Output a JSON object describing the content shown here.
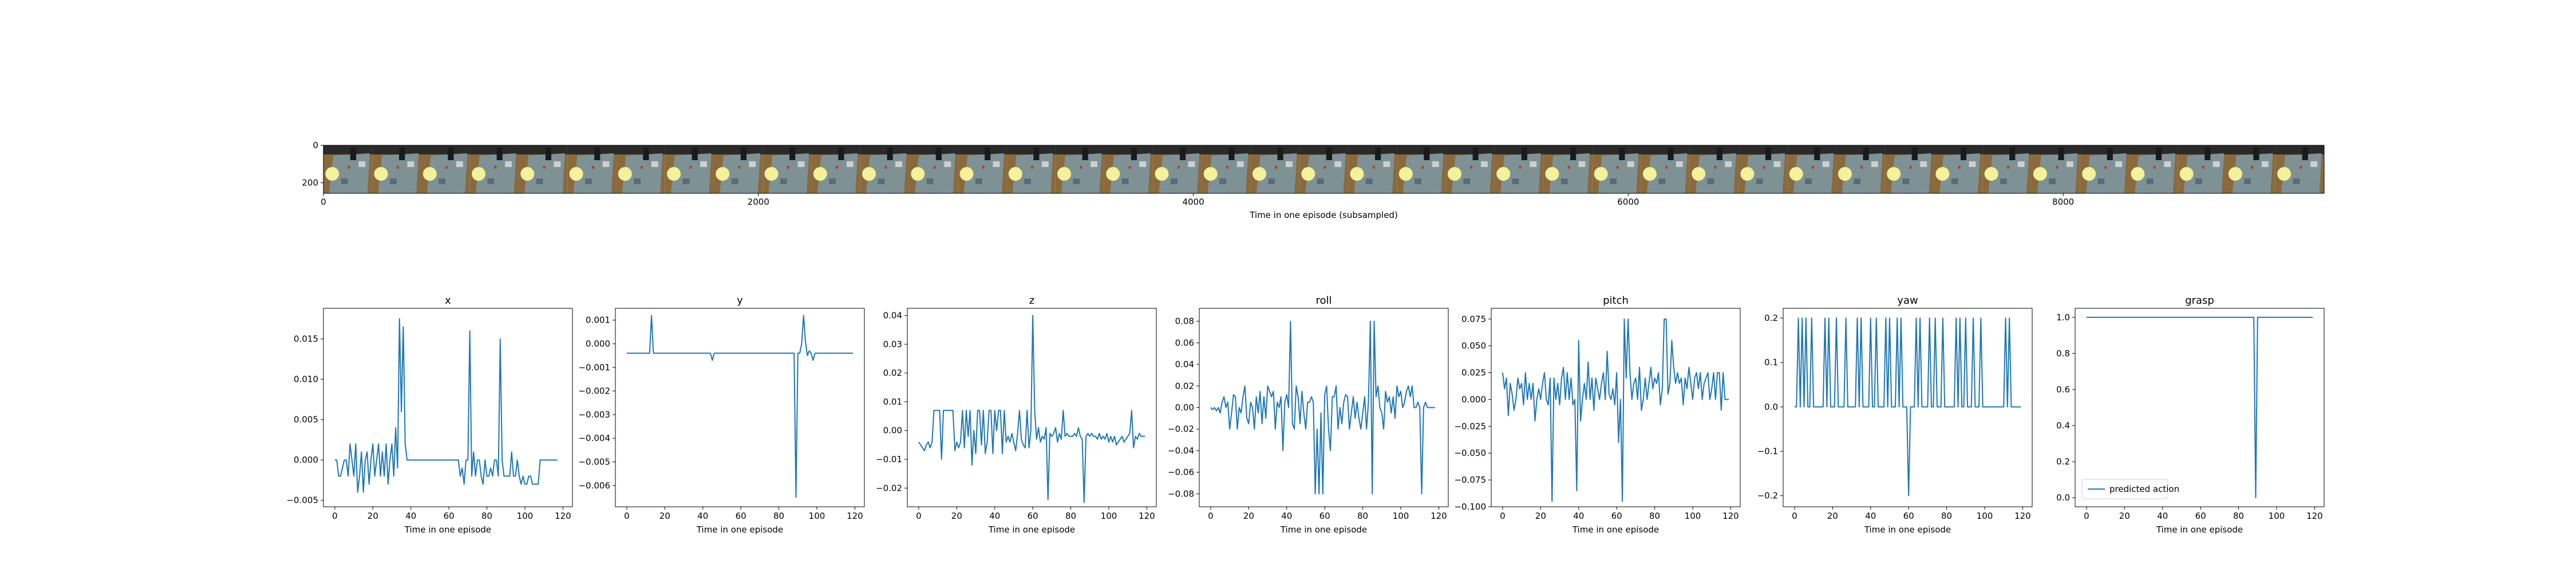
{
  "image_strip": {
    "xlabel": "Time in one episode (subsampled)",
    "x_ticks": [
      0,
      2000,
      4000,
      6000,
      8000
    ],
    "y_ticks": [
      0,
      200
    ],
    "xlim": [
      0,
      9200
    ],
    "ylim": [
      256,
      0
    ],
    "frame_count": 41
  },
  "chart_data": [
    {
      "type": "line",
      "title": "x",
      "xlabel": "Time in one episode",
      "xlim": [
        -6,
        125
      ],
      "ylim": [
        -0.0058,
        0.0188
      ],
      "x_ticks": [
        0,
        20,
        40,
        60,
        80,
        100,
        120
      ],
      "y_ticks": [
        -0.005,
        0.0,
        0.005,
        0.01,
        0.015
      ],
      "y_tick_labels": [
        "−0.005",
        "0.000",
        "0.005",
        "0.010",
        "0.015"
      ],
      "color": "#1f77b4",
      "y": [
        0.0,
        0.0,
        -0.002,
        -0.002,
        -0.001,
        0.0,
        0.0,
        -0.002,
        0.002,
        0.0,
        -0.002,
        0.002,
        -0.004,
        -0.002,
        0.001,
        -0.004,
        0.0,
        0.001,
        -0.003,
        0.0,
        0.002,
        -0.002,
        0.0,
        0.002,
        -0.002,
        0.001,
        -0.002,
        0.002,
        -0.003,
        0.0,
        0.002,
        -0.002,
        0.004,
        -0.001,
        0.0175,
        0.006,
        0.0165,
        0.002,
        0.0,
        0.0,
        0.0,
        0.0,
        0.0,
        0.0,
        0.0,
        0.0,
        0.0,
        0.0,
        0.0,
        0.0,
        0.0,
        0.0,
        0.0,
        0.0,
        0.0,
        0.0,
        0.0,
        0.0,
        0.0,
        0.0,
        0.0,
        0.0,
        0.0,
        0.0,
        0.0,
        0.0,
        -0.002,
        -0.001,
        -0.003,
        0.0,
        0.0,
        0.016,
        -0.002,
        0.001,
        -0.002,
        0.0,
        0.0,
        -0.002,
        -0.003,
        0.0,
        -0.002,
        -0.002,
        -0.001,
        -0.002,
        0.0,
        0.0,
        -0.002,
        0.015,
        0.0,
        -0.002,
        -0.002,
        -0.002,
        -0.002,
        0.001,
        -0.002,
        -0.002,
        0.0,
        -0.002,
        -0.003,
        -0.002,
        -0.003,
        -0.003,
        -0.002,
        -0.002,
        -0.003,
        -0.003,
        -0.003,
        -0.003,
        0.0,
        0.0,
        0.0,
        0.0,
        0.0,
        0.0,
        0.0,
        0.0,
        0.0,
        0.0
      ]
    },
    {
      "type": "line",
      "title": "y",
      "xlabel": "Time in one episode",
      "xlim": [
        -6,
        125
      ],
      "ylim": [
        -0.0069,
        0.0015
      ],
      "x_ticks": [
        0,
        20,
        40,
        60,
        80,
        100,
        120
      ],
      "y_ticks": [
        -0.006,
        -0.005,
        -0.004,
        -0.003,
        -0.002,
        -0.001,
        0.0,
        0.001
      ],
      "y_tick_labels": [
        "−0.006",
        "−0.005",
        "−0.004",
        "−0.003",
        "−0.002",
        "−0.001",
        "0.000",
        "0.001"
      ],
      "color": "#1f77b4",
      "y": [
        -0.0004,
        -0.0004,
        -0.0004,
        -0.0004,
        -0.0004,
        -0.0004,
        -0.0004,
        -0.0004,
        -0.0004,
        -0.0004,
        -0.0004,
        -0.0004,
        -0.0004,
        0.0012,
        -0.0004,
        -0.0004,
        -0.0004,
        -0.0004,
        -0.0004,
        -0.0004,
        -0.0004,
        -0.0004,
        -0.0004,
        -0.0004,
        -0.0004,
        -0.0004,
        -0.0004,
        -0.0004,
        -0.0004,
        -0.0004,
        -0.0004,
        -0.0004,
        -0.0004,
        -0.0004,
        -0.0004,
        -0.0004,
        -0.0004,
        -0.0004,
        -0.0004,
        -0.0004,
        -0.0004,
        -0.0004,
        -0.0004,
        -0.0004,
        -0.0004,
        -0.0007,
        -0.0004,
        -0.0004,
        -0.0004,
        -0.0004,
        -0.0004,
        -0.0004,
        -0.0004,
        -0.0004,
        -0.0004,
        -0.0004,
        -0.0004,
        -0.0004,
        -0.0004,
        -0.0004,
        -0.0004,
        -0.0004,
        -0.0004,
        -0.0004,
        -0.0004,
        -0.0004,
        -0.0004,
        -0.0004,
        -0.0004,
        -0.0004,
        -0.0004,
        -0.0004,
        -0.0004,
        -0.0004,
        -0.0004,
        -0.0004,
        -0.0004,
        -0.0004,
        -0.0004,
        -0.0004,
        -0.0004,
        -0.0004,
        -0.0004,
        -0.0004,
        -0.0004,
        -0.0004,
        -0.0004,
        -0.0004,
        -0.0004,
        -0.0065,
        -0.0004,
        -0.0004,
        0.0,
        0.0012,
        0.0001,
        -0.0005,
        -0.0003,
        -0.0004,
        -0.0007,
        -0.0004,
        -0.0004,
        -0.0004,
        -0.0004,
        -0.0004,
        -0.0004,
        -0.0004,
        -0.0004,
        -0.0004,
        -0.0004,
        -0.0004,
        -0.0004,
        -0.0004,
        -0.0004,
        -0.0004,
        -0.0004,
        -0.0004,
        -0.0004,
        -0.0004,
        -0.0004,
        -0.0004
      ]
    },
    {
      "type": "line",
      "title": "z",
      "xlabel": "Time in one episode",
      "xlim": [
        -6,
        125
      ],
      "ylim": [
        -0.0265,
        0.0425
      ],
      "x_ticks": [
        0,
        20,
        40,
        60,
        80,
        100,
        120
      ],
      "y_ticks": [
        -0.02,
        -0.01,
        0.0,
        0.01,
        0.02,
        0.03,
        0.04
      ],
      "y_tick_labels": [
        "−0.02",
        "−0.01",
        "0.00",
        "0.01",
        "0.02",
        "0.03",
        "0.04"
      ],
      "color": "#1f77b4",
      "y": [
        -0.004,
        -0.005,
        -0.006,
        -0.007,
        -0.005,
        -0.004,
        -0.006,
        -0.004,
        0.007,
        0.007,
        0.007,
        0.007,
        -0.01,
        0.007,
        0.007,
        0.007,
        0.007,
        0.007,
        0.007,
        -0.007,
        -0.004,
        -0.006,
        -0.004,
        0.007,
        -0.006,
        0.007,
        -0.002,
        0.007,
        -0.012,
        0.0,
        -0.008,
        0.007,
        0.007,
        -0.005,
        0.007,
        -0.008,
        -0.004,
        0.007,
        0.007,
        -0.008,
        0.007,
        0.0,
        0.007,
        0.007,
        -0.008,
        0.007,
        -0.004,
        -0.002,
        -0.004,
        -0.001,
        -0.004,
        -0.007,
        -0.001,
        0.007,
        -0.003,
        -0.005,
        -0.006,
        0.007,
        -0.006,
        0.0,
        0.04,
        0.007,
        -0.003,
        0.001,
        -0.004,
        -0.002,
        -0.003,
        0.001,
        -0.024,
        -0.001,
        -0.002,
        -0.001,
        0.001,
        -0.004,
        -0.001,
        -0.003,
        0.007,
        -0.002,
        -0.001,
        -0.002,
        -0.002,
        -0.002,
        -0.001,
        -0.002,
        0.001,
        -0.002,
        -0.003,
        -0.025,
        -0.002,
        -0.001,
        -0.002,
        -0.001,
        -0.002,
        -0.002,
        -0.003,
        -0.001,
        -0.003,
        -0.002,
        -0.003,
        -0.001,
        -0.004,
        -0.002,
        -0.004,
        -0.002,
        -0.005,
        -0.004,
        -0.003,
        -0.002,
        -0.004,
        -0.003,
        -0.002,
        -0.001,
        0.007,
        -0.006,
        -0.002,
        -0.003,
        -0.001,
        -0.002,
        -0.002,
        -0.002
      ]
    },
    {
      "type": "line",
      "title": "roll",
      "xlabel": "Time in one episode",
      "xlim": [
        -6,
        125
      ],
      "ylim": [
        -0.092,
        0.092
      ],
      "x_ticks": [
        0,
        20,
        40,
        60,
        80,
        100,
        120
      ],
      "y_ticks": [
        -0.08,
        -0.06,
        -0.04,
        -0.02,
        0.0,
        0.02,
        0.04,
        0.06,
        0.08
      ],
      "y_tick_labels": [
        "−0.08",
        "−0.06",
        "−0.04",
        "−0.02",
        "0.00",
        "0.02",
        "0.04",
        "0.06",
        "0.08"
      ],
      "color": "#1f77b4",
      "y": [
        0.0,
        -0.002,
        0.0,
        -0.003,
        0.0,
        -0.005,
        0.005,
        0.01,
        0.0,
        0.005,
        -0.02,
        -0.005,
        0.012,
        0.01,
        -0.02,
        0.0,
        -0.005,
        0.01,
        0.02,
        -0.01,
        -0.015,
        0.005,
        0.0,
        -0.02,
        0.01,
        -0.005,
        0.015,
        -0.015,
        0.01,
        -0.01,
        0.02,
        0.015,
        0.01,
        0.015,
        -0.02,
        0.005,
        0.0,
        0.01,
        -0.04,
        0.005,
        0.012,
        0.0,
        0.08,
        -0.015,
        -0.02,
        0.02,
        0.01,
        -0.015,
        0.015,
        -0.005,
        -0.02,
        0.005,
        0.005,
        0.01,
        0.005,
        -0.08,
        -0.02,
        -0.08,
        -0.005,
        -0.08,
        0.012,
        0.02,
        -0.02,
        -0.04,
        0.01,
        0.01,
        0.02,
        -0.02,
        0.0,
        -0.015,
        0.005,
        0.012,
        0.01,
        -0.02,
        -0.005,
        0.01,
        -0.01,
        0.005,
        -0.01,
        -0.02,
        -0.005,
        0.01,
        -0.02,
        0.005,
        0.08,
        -0.08,
        0.08,
        0.01,
        0.02,
        0.0,
        -0.005,
        -0.02,
        0.015,
        0.005,
        0.01,
        -0.005,
        0.01,
        -0.01,
        0.02,
        0.01,
        0.015,
        0.0,
        0.005,
        0.015,
        0.02,
        0.01,
        0.02,
        0.0,
        0.0,
        0.005,
        0.0,
        -0.08,
        0.0,
        0.005,
        0.0,
        0.0,
        0.0,
        0.0,
        0.0
      ]
    },
    {
      "type": "line",
      "title": "pitch",
      "xlabel": "Time in one episode",
      "xlim": [
        -6,
        125
      ],
      "ylim": [
        -0.1,
        0.085
      ],
      "x_ticks": [
        0,
        20,
        40,
        60,
        80,
        100,
        120
      ],
      "y_ticks": [
        -0.1,
        -0.075,
        -0.05,
        -0.025,
        0.0,
        0.025,
        0.05,
        0.075
      ],
      "y_tick_labels": [
        "−0.100",
        "−0.075",
        "−0.050",
        "−0.025",
        "0.000",
        "0.025",
        "0.050",
        "0.075"
      ],
      "color": "#1f77b4",
      "y": [
        0.025,
        0.01,
        0.02,
        -0.015,
        0.015,
        0.005,
        -0.01,
        0.0,
        0.02,
        0.01,
        0.015,
        -0.005,
        0.025,
        0.0,
        0.015,
        0.0,
        0.015,
        -0.02,
        0.0,
        0.01,
        0.0,
        0.015,
        0.025,
        0.0,
        -0.005,
        0.02,
        -0.095,
        0.02,
        0.0,
        0.015,
        -0.005,
        0.02,
        0.03,
        0.0,
        0.025,
        0.0,
        0.02,
        -0.005,
        0.0,
        -0.085,
        0.055,
        -0.02,
        0.0,
        0.015,
        0.0,
        0.035,
        0.0,
        0.02,
        -0.01,
        0.02,
        0.01,
        0.0,
        0.015,
        0.025,
        0.0,
        0.045,
        0.005,
        0.0,
        0.01,
        -0.005,
        0.025,
        -0.04,
        0.0,
        -0.095,
        0.075,
        0.02,
        0.075,
        0.025,
        0.0,
        0.015,
        0.02,
        0.0,
        0.03,
        -0.01,
        0.0,
        0.02,
        0.0,
        0.015,
        0.03,
        0.01,
        0.02,
        0.015,
        0.025,
        -0.005,
        0.01,
        0.075,
        0.075,
        0.005,
        0.015,
        0.055,
        0.03,
        0.015,
        0.025,
        0.015,
        0.02,
        -0.005,
        0.02,
        0.01,
        0.03,
        0.015,
        0.0,
        0.02,
        0.025,
        0.01,
        0.025,
        0.0,
        0.015,
        0.02,
        0.025,
        0.0,
        0.01,
        0.025,
        0.0,
        0.025,
        0.025,
        -0.01,
        0.025,
        0.0,
        0.0,
        0.0
      ]
    },
    {
      "type": "line",
      "title": "yaw",
      "xlabel": "Time in one episode",
      "xlim": [
        -6,
        125
      ],
      "ylim": [
        -0.225,
        0.222
      ],
      "x_ticks": [
        0,
        20,
        40,
        60,
        80,
        100,
        120
      ],
      "y_ticks": [
        -0.2,
        -0.1,
        0.0,
        0.1,
        0.2
      ],
      "y_tick_labels": [
        "−0.2",
        "−0.1",
        "0.0",
        "0.1",
        "0.2"
      ],
      "color": "#1f77b4",
      "y": [
        0.0,
        0.0,
        0.2,
        0.0,
        0.2,
        0.0,
        0.2,
        0.0,
        0.0,
        0.2,
        0.0,
        0.0,
        0.0,
        0.0,
        0.0,
        0.0,
        0.2,
        0.0,
        0.2,
        0.0,
        0.0,
        0.0,
        0.2,
        0.0,
        0.0,
        0.0,
        0.0,
        0.2,
        0.0,
        0.0,
        0.0,
        0.0,
        0.0,
        0.2,
        0.0,
        0.2,
        0.0,
        0.0,
        0.0,
        0.0,
        0.2,
        0.0,
        0.0,
        0.2,
        0.0,
        0.0,
        0.0,
        0.0,
        0.2,
        0.0,
        0.2,
        0.0,
        0.0,
        0.0,
        0.2,
        0.0,
        0.2,
        0.0,
        0.0,
        0.0,
        -0.2,
        0.0,
        0.0,
        0.0,
        0.2,
        0.0,
        0.2,
        0.0,
        0.0,
        0.0,
        0.0,
        0.2,
        0.0,
        0.0,
        0.2,
        0.0,
        0.0,
        0.0,
        0.2,
        0.0,
        0.0,
        0.0,
        0.0,
        0.0,
        0.0,
        0.2,
        0.0,
        0.2,
        0.0,
        0.0,
        0.2,
        0.0,
        0.0,
        0.0,
        0.2,
        0.0,
        0.0,
        0.0,
        0.2,
        0.0,
        0.0,
        0.0,
        0.0,
        0.0,
        0.0,
        0.0,
        0.0,
        0.0,
        0.0,
        0.0,
        0.0,
        0.2,
        0.0,
        0.2,
        0.0,
        0.0,
        0.0,
        0.0,
        0.0,
        0.0
      ]
    },
    {
      "type": "line",
      "title": "grasp",
      "xlabel": "Time in one episode",
      "xlim": [
        -6,
        125
      ],
      "ylim": [
        -0.05,
        1.05
      ],
      "x_ticks": [
        0,
        20,
        40,
        60,
        80,
        100,
        120
      ],
      "y_ticks": [
        0.0,
        0.2,
        0.4,
        0.6,
        0.8,
        1.0
      ],
      "y_tick_labels": [
        "0.0",
        "0.2",
        "0.4",
        "0.6",
        "0.8",
        "1.0"
      ],
      "color": "#1f77b4",
      "legend": {
        "label": "predicted action",
        "loc": "lower-left"
      },
      "y": [
        1.0,
        1.0,
        1.0,
        1.0,
        1.0,
        1.0,
        1.0,
        1.0,
        1.0,
        1.0,
        1.0,
        1.0,
        1.0,
        1.0,
        1.0,
        1.0,
        1.0,
        1.0,
        1.0,
        1.0,
        1.0,
        1.0,
        1.0,
        1.0,
        1.0,
        1.0,
        1.0,
        1.0,
        1.0,
        1.0,
        1.0,
        1.0,
        1.0,
        1.0,
        1.0,
        1.0,
        1.0,
        1.0,
        1.0,
        1.0,
        1.0,
        1.0,
        1.0,
        1.0,
        1.0,
        1.0,
        1.0,
        1.0,
        1.0,
        1.0,
        1.0,
        1.0,
        1.0,
        1.0,
        1.0,
        1.0,
        1.0,
        1.0,
        1.0,
        1.0,
        1.0,
        1.0,
        1.0,
        1.0,
        1.0,
        1.0,
        1.0,
        1.0,
        1.0,
        1.0,
        1.0,
        1.0,
        1.0,
        1.0,
        1.0,
        1.0,
        1.0,
        1.0,
        1.0,
        1.0,
        1.0,
        1.0,
        1.0,
        1.0,
        1.0,
        1.0,
        1.0,
        1.0,
        1.0,
        0.0,
        1.0,
        1.0,
        1.0,
        1.0,
        1.0,
        1.0,
        1.0,
        1.0,
        1.0,
        1.0,
        1.0,
        1.0,
        1.0,
        1.0,
        1.0,
        1.0,
        1.0,
        1.0,
        1.0,
        1.0,
        1.0,
        1.0,
        1.0,
        1.0,
        1.0,
        1.0,
        1.0,
        1.0,
        1.0,
        1.0
      ]
    }
  ]
}
